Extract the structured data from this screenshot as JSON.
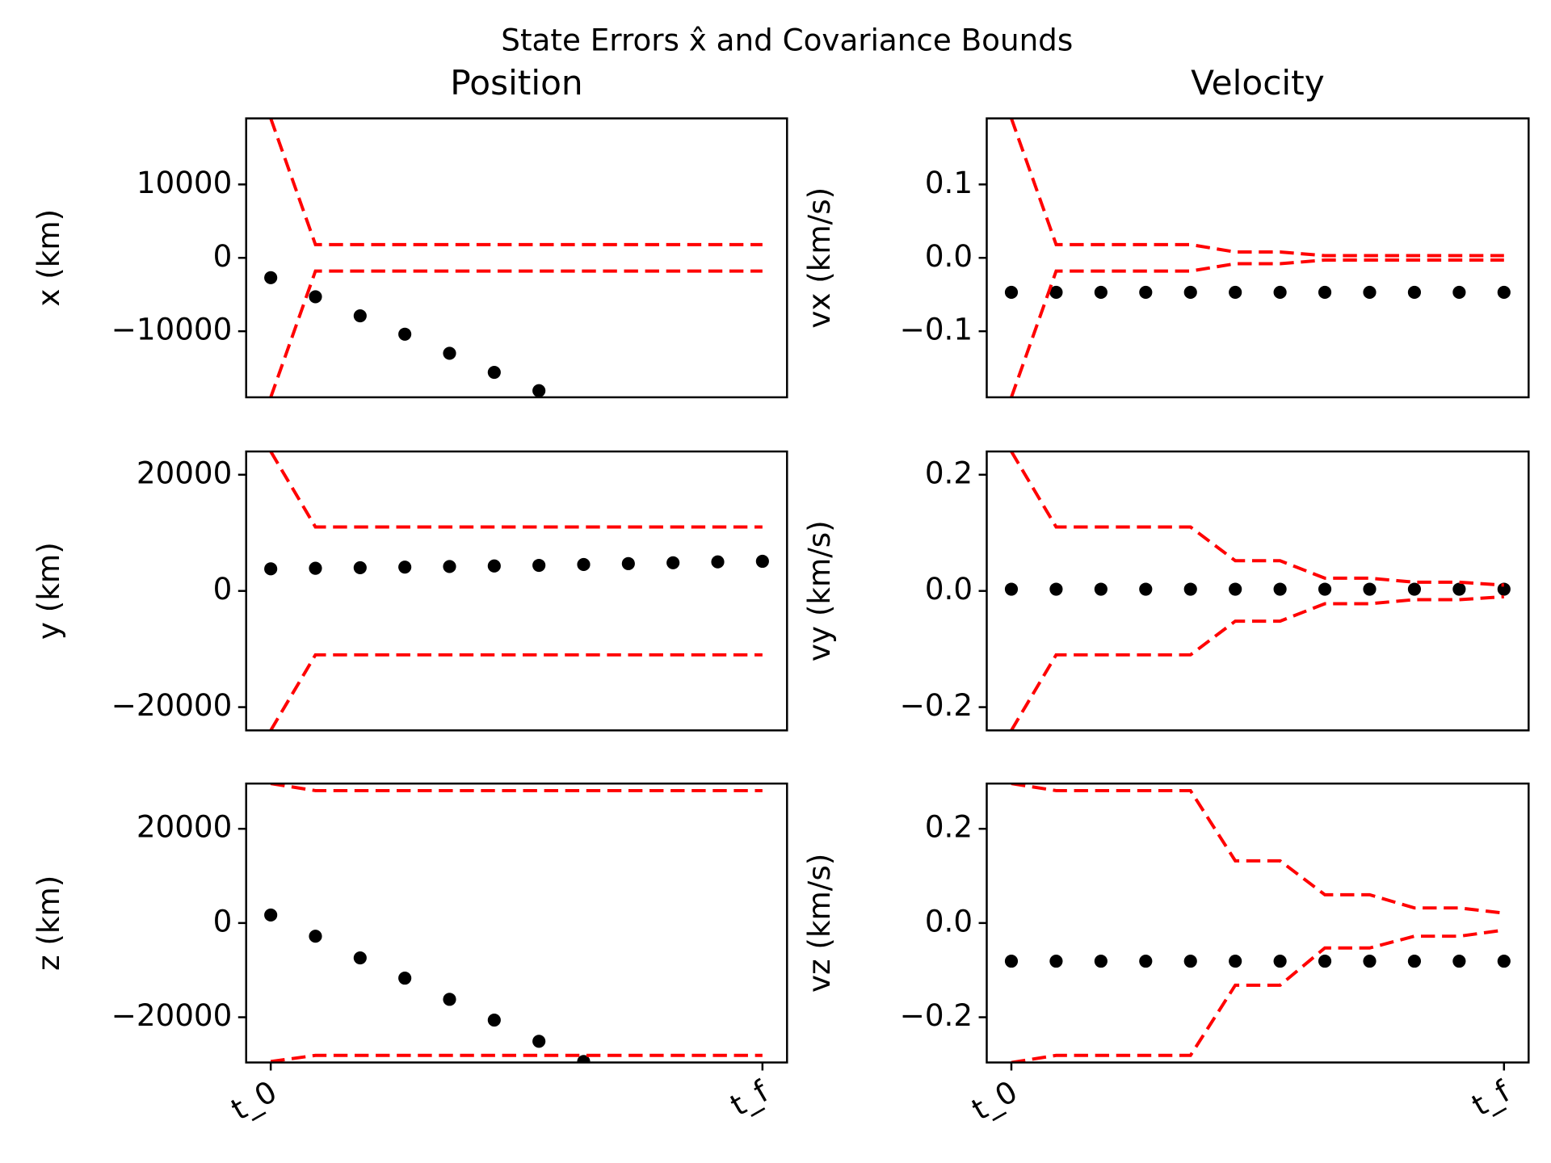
{
  "title": "State Errors x̂ and Covariance Bounds",
  "chart_data": [
    {
      "type": "scatter-bounds",
      "title": "Position",
      "y_label": "x (km)",
      "x": [
        0,
        1,
        2,
        3,
        4,
        5,
        6,
        7,
        8,
        9,
        10,
        11
      ],
      "xlim": [
        -0.55,
        11.55
      ],
      "ylim": [
        -19000,
        19000
      ],
      "yticks": [
        {
          "value": -10000,
          "label": "−10000"
        },
        0,
        10000
      ],
      "series": [
        {
          "style": "dots",
          "color": "#000000",
          "values": [
            -2700,
            -5300,
            -7900,
            -10400,
            -13000,
            -15600,
            -18100,
            null,
            null,
            null,
            null,
            null
          ]
        },
        {
          "style": "dashed",
          "color": "#ff0000",
          "values": [
            19000,
            1800,
            1800,
            1800,
            1800,
            1800,
            1800,
            1800,
            1800,
            1800,
            1800,
            1800
          ]
        },
        {
          "style": "dashed",
          "color": "#ff0000",
          "values": [
            -19000,
            -1800,
            -1800,
            -1800,
            -1800,
            -1800,
            -1800,
            -1800,
            -1800,
            -1800,
            -1800,
            -1800
          ]
        }
      ]
    },
    {
      "type": "scatter-bounds",
      "title": "Velocity",
      "y_label": "vx (km/s)",
      "x": [
        0,
        1,
        2,
        3,
        4,
        5,
        6,
        7,
        8,
        9,
        10,
        11
      ],
      "xlim": [
        -0.55,
        11.55
      ],
      "ylim": [
        -0.19,
        0.19
      ],
      "yticks": [
        {
          "value": -0.1,
          "label": "−0.1"
        },
        {
          "value": 0,
          "label": "0.0"
        },
        0.1
      ],
      "series": [
        {
          "style": "dots",
          "color": "#000000",
          "values": [
            -0.047,
            -0.047,
            -0.047,
            -0.047,
            -0.047,
            -0.047,
            -0.047,
            -0.047,
            -0.047,
            -0.047,
            -0.047,
            -0.047
          ]
        },
        {
          "style": "dashed",
          "color": "#ff0000",
          "values": [
            0.19,
            0.018,
            0.018,
            0.018,
            0.018,
            0.008,
            0.008,
            0.003,
            0.003,
            0.003,
            0.003,
            0.003
          ]
        },
        {
          "style": "dashed",
          "color": "#ff0000",
          "values": [
            -0.19,
            -0.018,
            -0.018,
            -0.018,
            -0.018,
            -0.008,
            -0.008,
            -0.003,
            -0.003,
            -0.003,
            -0.003,
            -0.003
          ]
        }
      ]
    },
    {
      "type": "scatter-bounds",
      "y_label": "y (km)",
      "x": [
        0,
        1,
        2,
        3,
        4,
        5,
        6,
        7,
        8,
        9,
        10,
        11
      ],
      "xlim": [
        -0.55,
        11.55
      ],
      "ylim": [
        -24000,
        24000
      ],
      "yticks": [
        {
          "value": -20000,
          "label": "−20000"
        },
        0,
        20000
      ],
      "series": [
        {
          "style": "dots",
          "color": "#000000",
          "values": [
            3800,
            3900,
            4000,
            4100,
            4200,
            4300,
            4400,
            4550,
            4700,
            4850,
            5000,
            5100
          ]
        },
        {
          "style": "dashed",
          "color": "#ff0000",
          "values": [
            24000,
            11000,
            11000,
            11000,
            11000,
            11000,
            11000,
            11000,
            11000,
            11000,
            11000,
            11000
          ]
        },
        {
          "style": "dashed",
          "color": "#ff0000",
          "values": [
            -24000,
            -11000,
            -11000,
            -11000,
            -11000,
            -11000,
            -11000,
            -11000,
            -11000,
            -11000,
            -11000,
            -11000
          ]
        }
      ]
    },
    {
      "type": "scatter-bounds",
      "y_label": "vy (km/s)",
      "x": [
        0,
        1,
        2,
        3,
        4,
        5,
        6,
        7,
        8,
        9,
        10,
        11
      ],
      "xlim": [
        -0.55,
        11.55
      ],
      "ylim": [
        -0.24,
        0.24
      ],
      "yticks": [
        {
          "value": -0.2,
          "label": "−0.2"
        },
        {
          "value": 0,
          "label": "0.0"
        },
        0.2
      ],
      "series": [
        {
          "style": "dots",
          "color": "#000000",
          "values": [
            0.003,
            0.003,
            0.003,
            0.003,
            0.003,
            0.003,
            0.003,
            0.003,
            0.003,
            0.003,
            0.003,
            0.003
          ]
        },
        {
          "style": "dashed",
          "color": "#ff0000",
          "values": [
            0.24,
            0.11,
            0.11,
            0.11,
            0.11,
            0.052,
            0.052,
            0.022,
            0.022,
            0.015,
            0.015,
            0.01
          ]
        },
        {
          "style": "dashed",
          "color": "#ff0000",
          "values": [
            -0.24,
            -0.11,
            -0.11,
            -0.11,
            -0.11,
            -0.052,
            -0.052,
            -0.022,
            -0.022,
            -0.015,
            -0.015,
            -0.01
          ]
        }
      ]
    },
    {
      "type": "scatter-bounds",
      "y_label": "z (km)",
      "x": [
        0,
        1,
        2,
        3,
        4,
        5,
        6,
        7,
        8,
        9,
        10,
        11
      ],
      "xlim": [
        -0.55,
        11.55
      ],
      "ylim": [
        -29600,
        29600
      ],
      "xticks": [
        {
          "value": 0,
          "label": "t_0"
        },
        {
          "value": 11,
          "label": "t_f"
        }
      ],
      "yticks": [
        {
          "value": -20000,
          "label": "−20000"
        },
        0,
        20000
      ],
      "series": [
        {
          "style": "dots",
          "color": "#000000",
          "values": [
            1700,
            -2800,
            -7400,
            -11700,
            -16200,
            -20600,
            -25100,
            -29400,
            null,
            null,
            null,
            null
          ]
        },
        {
          "style": "dashed",
          "color": "#ff0000",
          "values": [
            29600,
            28100,
            28100,
            28100,
            28100,
            28100,
            28100,
            28100,
            28100,
            28100,
            28100,
            28100
          ]
        },
        {
          "style": "dashed",
          "color": "#ff0000",
          "values": [
            -29400,
            -28100,
            -28100,
            -28100,
            -28100,
            -28100,
            -28100,
            -28100,
            -28100,
            -28100,
            -28100,
            -28100
          ]
        }
      ]
    },
    {
      "type": "scatter-bounds",
      "y_label": "vz (km/s)",
      "x": [
        0,
        1,
        2,
        3,
        4,
        5,
        6,
        7,
        8,
        9,
        10,
        11
      ],
      "xlim": [
        -0.55,
        11.55
      ],
      "ylim": [
        -0.296,
        0.296
      ],
      "xticks": [
        {
          "value": 0,
          "label": "t_0"
        },
        {
          "value": 11,
          "label": "t_f"
        }
      ],
      "yticks": [
        {
          "value": -0.2,
          "label": "−0.2"
        },
        {
          "value": 0,
          "label": "0.0"
        },
        0.2
      ],
      "series": [
        {
          "style": "dots",
          "color": "#000000",
          "values": [
            -0.081,
            -0.081,
            -0.081,
            -0.081,
            -0.081,
            -0.081,
            -0.081,
            -0.081,
            -0.081,
            -0.081,
            -0.081,
            -0.081
          ]
        },
        {
          "style": "dashed",
          "color": "#ff0000",
          "values": [
            0.296,
            0.281,
            0.281,
            0.281,
            0.281,
            0.132,
            0.132,
            0.06,
            0.06,
            0.032,
            0.032,
            0.021
          ]
        },
        {
          "style": "dashed",
          "color": "#ff0000",
          "values": [
            -0.296,
            -0.281,
            -0.281,
            -0.281,
            -0.281,
            -0.132,
            -0.132,
            -0.053,
            -0.053,
            -0.028,
            -0.028,
            -0.015
          ]
        }
      ]
    }
  ]
}
